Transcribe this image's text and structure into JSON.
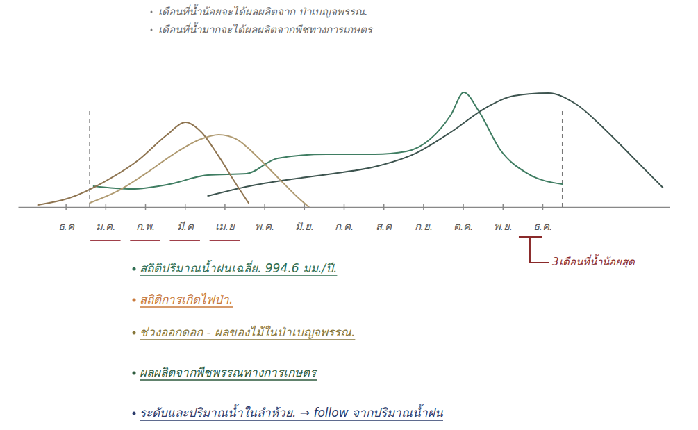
{
  "chart_data": {
    "type": "line",
    "notes": [
      "เดือนที่น้ำน้อยจะได้ผลผลิตจาก ป่าเบญจพรรณ.",
      "เดือนที่น้ำมากจะได้ผลผลิตจากพืชทางการเกษตร"
    ],
    "xlim": [
      -1.2,
      15.2
    ],
    "xticks": [
      {
        "value": 0,
        "label": "ธ.ค"
      },
      {
        "value": 1,
        "label": "ม.ค."
      },
      {
        "value": 2,
        "label": "ก.พ."
      },
      {
        "value": 3,
        "label": "มี.ค"
      },
      {
        "value": 4,
        "label": "เม.ย"
      },
      {
        "value": 5,
        "label": "พ.ค."
      },
      {
        "value": 6,
        "label": "มิ.ย."
      },
      {
        "value": 7,
        "label": "ก.ค."
      },
      {
        "value": 8,
        "label": "ส.ค"
      },
      {
        "value": 9,
        "label": "ก.ย."
      },
      {
        "value": 10,
        "label": "ต.ค."
      },
      {
        "value": 11,
        "label": "พ.ย."
      },
      {
        "value": 12,
        "label": "ธ.ค."
      }
    ],
    "ylim": [
      0,
      100
    ],
    "tick_labels": "x",
    "grid": false,
    "series": [
      {
        "color": "#3f7d62",
        "x": [
          0.7,
          1.66,
          2.62,
          3.58,
          4.55,
          5.33,
          6.56,
          7.78,
          8.57,
          9.18,
          9.7,
          10.02,
          10.4,
          10.93,
          11.63,
          12.5
        ],
        "values": [
          17.9,
          15.5,
          19.6,
          27.4,
          28.6,
          41.7,
          45.2,
          45.2,
          47.6,
          58.3,
          79.2,
          98.2,
          82.1,
          49.4,
          28.6,
          19.6
        ]
      },
      {
        "color": "#3d544f",
        "x": [
          3.58,
          4.62,
          5.68,
          6.73,
          7.78,
          8.83,
          9.7,
          10.58,
          11.28,
          12.15,
          12.85,
          13.55,
          14.25,
          15.03
        ],
        "values": [
          9.5,
          17.9,
          23.8,
          28.6,
          34.5,
          46.4,
          64.3,
          85.1,
          95.2,
          97.6,
          88.1,
          67.3,
          43.5,
          16.7
        ]
      },
      {
        "color": "#8e7450",
        "x": [
          -0.7,
          0.09,
          0.96,
          1.84,
          2.53,
          3.02,
          3.41,
          3.85,
          4.29,
          4.6
        ],
        "values": [
          1.8,
          7.7,
          21.4,
          40.5,
          61.3,
          72.6,
          64.3,
          43.5,
          19.6,
          3.6
        ]
      },
      {
        "color": "#b09b72",
        "x": [
          0.61,
          1.31,
          2.01,
          2.71,
          3.41,
          3.85,
          4.29,
          4.81,
          5.33,
          5.86,
          6.12
        ],
        "values": [
          3.6,
          13.7,
          28.6,
          45.2,
          58.3,
          61.9,
          58.3,
          43.5,
          25.6,
          7.7,
          0
        ]
      }
    ],
    "reference_lines": [
      0.6,
      12.5
    ],
    "highlight_months": [
      1,
      2,
      3,
      4
    ],
    "highlight_color": "#a0404a",
    "bracket_label": {
      "text": "3เดือนที่น้ำน้อยสุด",
      "color": "#8a2a2a"
    },
    "annotations": [
      {
        "text": "สถิติปริมาณน้ำฝนเฉลี่ย. 994.6 มม./ปี.",
        "color": "#2f6e52"
      },
      {
        "text": "สถิติการเกิดไฟป่า.",
        "color": "#c8783a"
      },
      {
        "text": "ช่วงออกดอก - ผลของไม้ในป่าเบญจพรรณ.",
        "color": "#86763a"
      },
      {
        "text": "ผลผลิตจากพืชพรรณทางการเกษตร",
        "color": "#2c5a3c"
      },
      {
        "text": "ระดับและปริมาณน้ำในลำห้วย. → follow จากปริมาณน้ำฝน",
        "color": "#2a3a6a"
      }
    ]
  }
}
